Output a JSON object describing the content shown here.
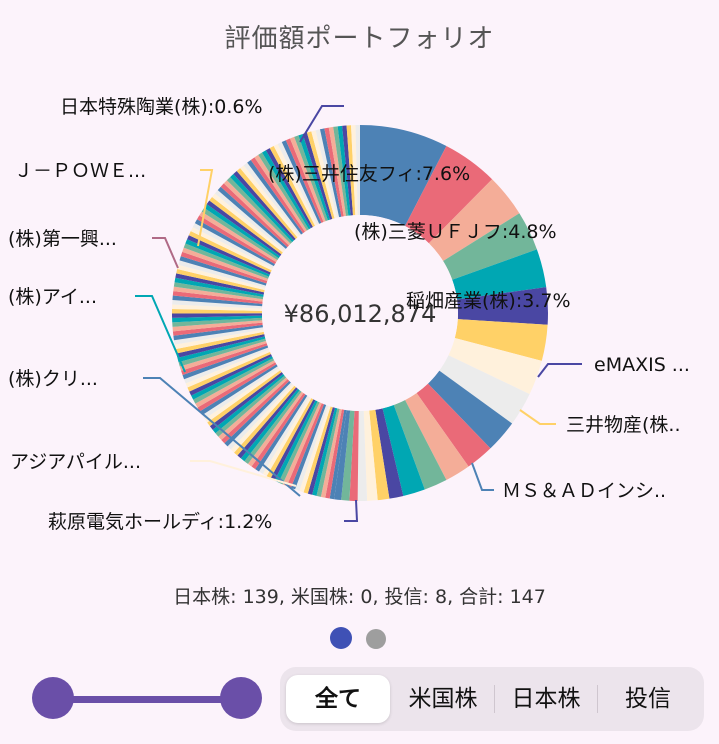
{
  "title": "評価額ポートフォリオ",
  "center_value": "¥86,012,874",
  "chart_data": {
    "type": "donut",
    "title": "評価額ポートフォリオ",
    "total_label": "¥86,012,874",
    "slices": [
      {
        "label": "(株)三井住友フィ",
        "percent": 7.6,
        "color": "#4d82b5"
      },
      {
        "label": "(株)三菱ＵＦＪフ",
        "percent": 4.8,
        "color": "#ea6a78"
      },
      {
        "label": "稲畑産業(株)",
        "percent": 3.7,
        "color": "#f4ad98"
      },
      {
        "label": "",
        "percent": 3.4,
        "color": "#72b69a"
      },
      {
        "label": "",
        "percent": 3.3,
        "color": "#00a7b3"
      },
      {
        "label": "eMAXIS ...",
        "percent": 3.2,
        "color": "#4a47a3"
      },
      {
        "label": "三井物産(株..",
        "percent": 3.1,
        "color": "#ffd167"
      },
      {
        "label": "",
        "percent": 3.0,
        "color": "#fff1dc"
      },
      {
        "label": "",
        "percent": 2.9,
        "color": "#ececec"
      },
      {
        "label": "ＭＳ＆ＡＤインシ..",
        "percent": 2.8,
        "color": "#4d82b5"
      },
      {
        "label": "",
        "percent": 2.4,
        "color": "#ea6a78"
      },
      {
        "label": "",
        "percent": 2.2,
        "color": "#f4ad98"
      },
      {
        "label": "",
        "percent": 2.0,
        "color": "#72b69a"
      },
      {
        "label": "",
        "percent": 1.9,
        "color": "#00a7b3"
      },
      {
        "label": "萩原電気ホールディ",
        "percent": 1.2,
        "color": "#4a47a3"
      },
      {
        "label": "アジアパイル...",
        "percent": 1.0,
        "color": "#ffd167"
      },
      {
        "label": "(株)クリ...",
        "percent": 0.9,
        "color": "#fff1dc"
      },
      {
        "label": "(株)アイ...",
        "percent": 0.8,
        "color": "#ececec"
      },
      {
        "label": "(株)第一興...",
        "percent": 0.7,
        "color": "#ea6a78"
      },
      {
        "label": "Ｊ－ＰＯＷＥ...",
        "percent": 0.7,
        "color": "#72b69a"
      },
      {
        "label": "日本特殊陶業(株)",
        "percent": 0.6,
        "color": "#4d82b5"
      }
    ],
    "palette": [
      "#4d82b5",
      "#ea6a78",
      "#f4ad98",
      "#72b69a",
      "#00a7b3",
      "#4a47a3",
      "#ffd167",
      "#fff1dc",
      "#ececec"
    ],
    "rest_count": 147
  },
  "labels": {
    "nihon": "日本特殊陶業(株):0.6%",
    "jpower": "Ｊ－ＰＯＷＥ...",
    "daiichi": "(株)第一興...",
    "ai": "(株)アイ...",
    "kuri": "(株)クリ...",
    "asia": "アジアパイル...",
    "hagiwara": "萩原電気ホールディ:1.2%",
    "smfg": "(株)三井住友フィ:7.6%",
    "mufg": "(株)三菱ＵＦＪフ:4.8%",
    "inabata": "稲畑産業(株):3.7%",
    "emaxis": "eMAXIS ...",
    "mitsui": "三井物産(株..",
    "msad": "ＭＳ＆ＡＤインシ.."
  },
  "summary": "日本株: 139, 米国株: 0, 投信: 8, 合計: 147",
  "pager": {
    "active_color": "#3f51b5",
    "inactive_color": "#9e9e9e"
  },
  "tabs": {
    "all": "全て",
    "us": "米国株",
    "jp": "日本株",
    "fund": "投信"
  }
}
